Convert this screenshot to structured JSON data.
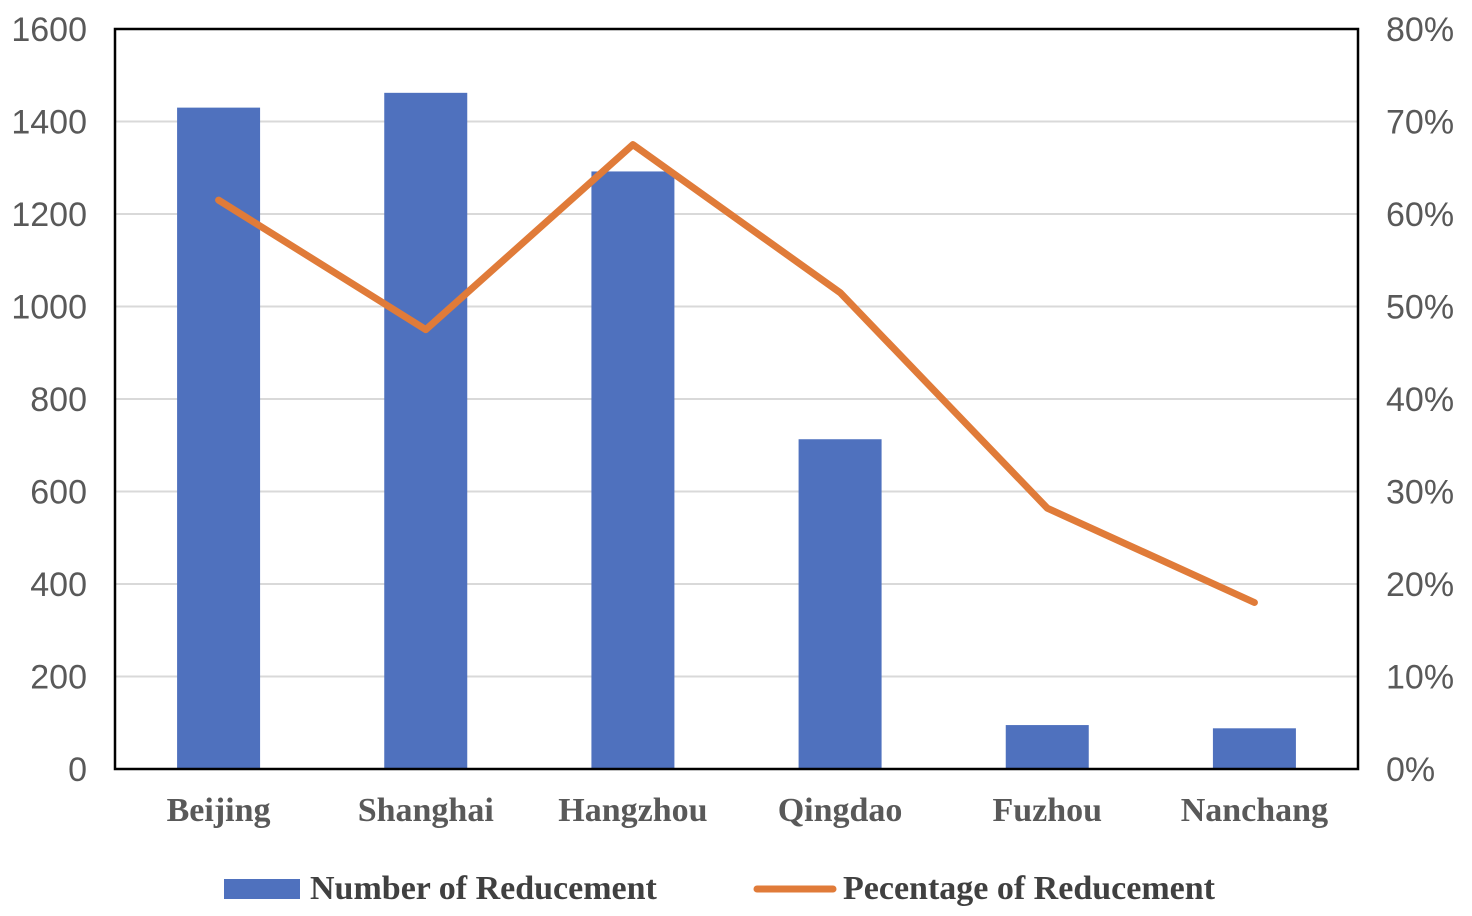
{
  "chart_data": {
    "type": "bar",
    "categories": [
      "Beijing",
      "Shanghai",
      "Hangzhou",
      "Qingdao",
      "Fuzhou",
      "Nanchang"
    ],
    "series": [
      {
        "name": "Number of Reducement",
        "type": "bar",
        "axis": "left",
        "color": "#4F71BE",
        "values": [
          1430,
          1462,
          1292,
          713,
          95,
          88
        ]
      },
      {
        "name": "Pecentage of Reducement",
        "type": "line",
        "axis": "right",
        "color": "#E07B39",
        "values": [
          61.5,
          47.5,
          67.5,
          51.5,
          28.2,
          18.0
        ]
      }
    ],
    "ylim_left": [
      0,
      1600
    ],
    "ylim_right": [
      0,
      80
    ],
    "yticks_left": [
      "0",
      "200",
      "400",
      "600",
      "800",
      "1000",
      "1200",
      "1400",
      "1600"
    ],
    "yticks_right": [
      "0%",
      "10%",
      "20%",
      "30%",
      "40%",
      "50%",
      "60%",
      "70%",
      "80%"
    ],
    "grid": true,
    "legend_position": "bottom"
  }
}
